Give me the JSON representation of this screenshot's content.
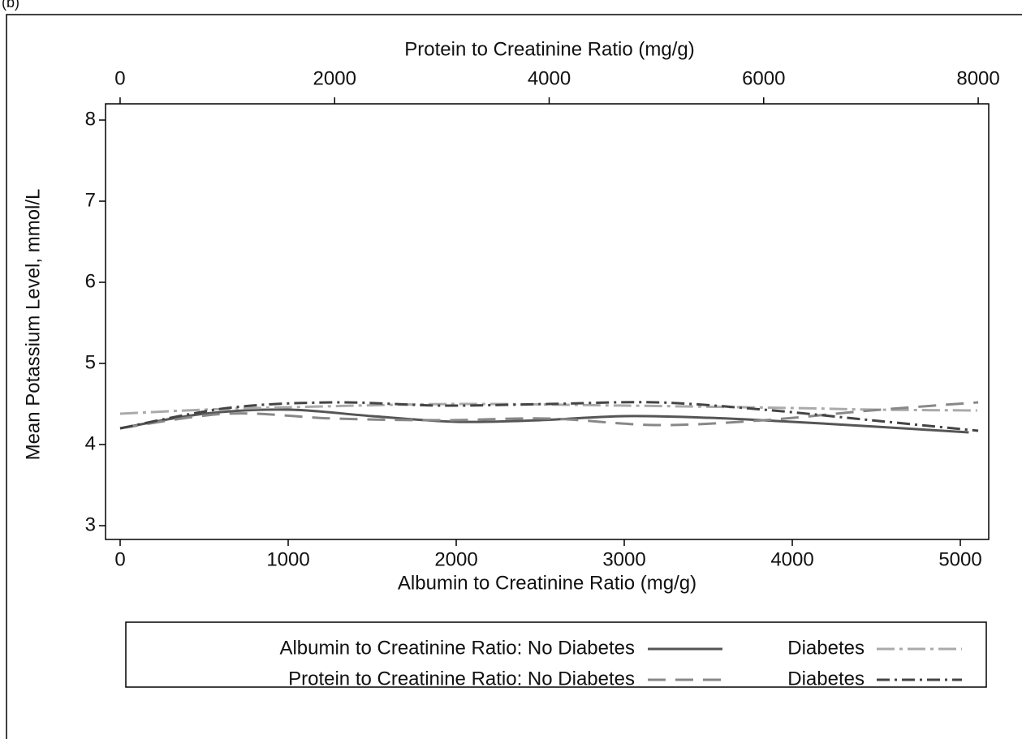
{
  "panel_label": "(b)",
  "chart_data": {
    "type": "line",
    "xlabel": "Albumin to Creatinine Ratio (mg/g)",
    "x2label": "Protein to Creatinine Ratio (mg/g)",
    "ylabel": "Mean Potassium Level, mmol/L",
    "xlim": [
      -87,
      5169
    ],
    "xticks": [
      0,
      1000,
      2000,
      3000,
      4000,
      5000
    ],
    "x2lim": [
      -136,
      8098
    ],
    "x2ticks": [
      0,
      2000,
      4000,
      6000,
      8000
    ],
    "ylim": [
      2.83,
      8.2
    ],
    "yticks": [
      3,
      4,
      5,
      6,
      7,
      8
    ],
    "series": [
      {
        "name": "Albumin to Creatinine Ratio: No Diabetes",
        "color": "#555555",
        "dash": "solid",
        "axis": "x",
        "x": [
          0,
          500,
          1000,
          1500,
          2000,
          2500,
          3000,
          3500,
          4000,
          4500,
          5050
        ],
        "values": [
          4.2,
          4.38,
          4.43,
          4.35,
          4.28,
          4.3,
          4.35,
          4.33,
          4.28,
          4.22,
          4.15
        ]
      },
      {
        "name": "Diabetes",
        "color": "#aaaaaa",
        "dash": "longdash-dot",
        "axis": "x",
        "x": [
          0,
          500,
          1000,
          2000,
          3000,
          4000,
          4500,
          5100
        ],
        "values": [
          4.38,
          4.43,
          4.46,
          4.5,
          4.48,
          4.45,
          4.43,
          4.42
        ]
      },
      {
        "name": "Protein to Creatinine Ratio: No Diabetes",
        "color": "#888888",
        "dash": "dash",
        "axis": "x2",
        "x": [
          0,
          1000,
          2000,
          3000,
          4000,
          5000,
          6000,
          7000,
          8000
        ],
        "values": [
          4.2,
          4.38,
          4.32,
          4.3,
          4.32,
          4.24,
          4.3,
          4.42,
          4.52
        ]
      },
      {
        "name": "Diabetes",
        "color": "#444444",
        "dash": "dash-dot",
        "axis": "x2",
        "x": [
          0,
          1000,
          2000,
          3000,
          4000,
          5000,
          6000,
          7000,
          8000
        ],
        "values": [
          4.2,
          4.45,
          4.52,
          4.48,
          4.5,
          4.52,
          4.43,
          4.3,
          4.17
        ]
      }
    ]
  }
}
